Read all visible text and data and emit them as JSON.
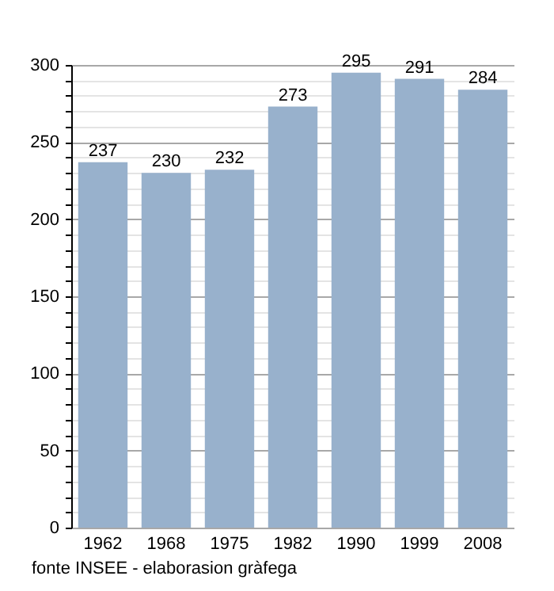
{
  "chart_data": {
    "type": "bar",
    "categories": [
      "1962",
      "1968",
      "1975",
      "1982",
      "1990",
      "1999",
      "2008"
    ],
    "values": [
      237,
      230,
      232,
      273,
      295,
      291,
      284
    ],
    "color": "#98b1cc",
    "data_labels": true,
    "grid": "y",
    "ylim": [
      0,
      300
    ],
    "yticks": [
      0,
      {
        "value": 10,
        "label": null
      },
      {
        "value": 20,
        "label": null
      },
      {
        "value": 30,
        "label": null
      },
      {
        "value": 40,
        "label": null
      },
      50,
      {
        "value": 60,
        "label": null
      },
      {
        "value": 70,
        "label": null
      },
      {
        "value": 80,
        "label": null
      },
      {
        "value": 90,
        "label": null
      },
      100,
      {
        "value": 110,
        "label": null
      },
      {
        "value": 120,
        "label": null
      },
      {
        "value": 130,
        "label": null
      },
      {
        "value": 140,
        "label": null
      },
      150,
      {
        "value": 160,
        "label": null
      },
      {
        "value": 170,
        "label": null
      },
      {
        "value": 180,
        "label": null
      },
      {
        "value": 190,
        "label": null
      },
      200,
      {
        "value": 210,
        "label": null
      },
      {
        "value": 220,
        "label": null
      },
      {
        "value": 230,
        "label": null
      },
      {
        "value": 240,
        "label": null
      },
      250,
      {
        "value": 260,
        "label": null
      },
      {
        "value": 270,
        "label": null
      },
      {
        "value": 280,
        "label": null
      },
      {
        "value": 290,
        "label": null
      },
      300
    ],
    "annotations": [
      "fonte INSEE - elaborasion gràfega"
    ]
  }
}
